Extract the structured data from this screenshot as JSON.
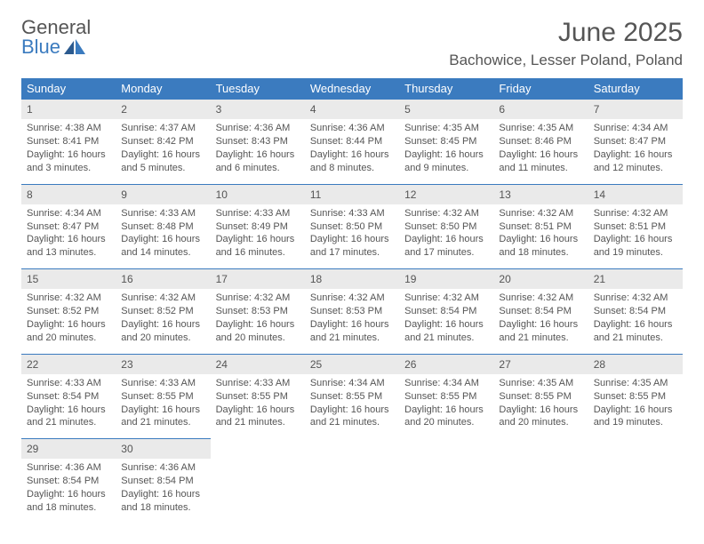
{
  "logo": {
    "text1": "General",
    "text2": "Blue",
    "icon_color": "#2b5a8f"
  },
  "title": "June 2025",
  "location": "Bachowice, Lesser Poland, Poland",
  "colors": {
    "header_bg": "#3b7bbf",
    "header_text": "#ffffff",
    "daynum_bg": "#eaeaea",
    "text": "#555555",
    "border": "#3b7bbf"
  },
  "weekdays": [
    "Sunday",
    "Monday",
    "Tuesday",
    "Wednesday",
    "Thursday",
    "Friday",
    "Saturday"
  ],
  "weeks": [
    {
      "days": [
        {
          "n": "1",
          "sr": "4:38 AM",
          "ss": "8:41 PM",
          "dl": "16 hours and 3 minutes."
        },
        {
          "n": "2",
          "sr": "4:37 AM",
          "ss": "8:42 PM",
          "dl": "16 hours and 5 minutes."
        },
        {
          "n": "3",
          "sr": "4:36 AM",
          "ss": "8:43 PM",
          "dl": "16 hours and 6 minutes."
        },
        {
          "n": "4",
          "sr": "4:36 AM",
          "ss": "8:44 PM",
          "dl": "16 hours and 8 minutes."
        },
        {
          "n": "5",
          "sr": "4:35 AM",
          "ss": "8:45 PM",
          "dl": "16 hours and 9 minutes."
        },
        {
          "n": "6",
          "sr": "4:35 AM",
          "ss": "8:46 PM",
          "dl": "16 hours and 11 minutes."
        },
        {
          "n": "7",
          "sr": "4:34 AM",
          "ss": "8:47 PM",
          "dl": "16 hours and 12 minutes."
        }
      ]
    },
    {
      "days": [
        {
          "n": "8",
          "sr": "4:34 AM",
          "ss": "8:47 PM",
          "dl": "16 hours and 13 minutes."
        },
        {
          "n": "9",
          "sr": "4:33 AM",
          "ss": "8:48 PM",
          "dl": "16 hours and 14 minutes."
        },
        {
          "n": "10",
          "sr": "4:33 AM",
          "ss": "8:49 PM",
          "dl": "16 hours and 16 minutes."
        },
        {
          "n": "11",
          "sr": "4:33 AM",
          "ss": "8:50 PM",
          "dl": "16 hours and 17 minutes."
        },
        {
          "n": "12",
          "sr": "4:32 AM",
          "ss": "8:50 PM",
          "dl": "16 hours and 17 minutes."
        },
        {
          "n": "13",
          "sr": "4:32 AM",
          "ss": "8:51 PM",
          "dl": "16 hours and 18 minutes."
        },
        {
          "n": "14",
          "sr": "4:32 AM",
          "ss": "8:51 PM",
          "dl": "16 hours and 19 minutes."
        }
      ]
    },
    {
      "days": [
        {
          "n": "15",
          "sr": "4:32 AM",
          "ss": "8:52 PM",
          "dl": "16 hours and 20 minutes."
        },
        {
          "n": "16",
          "sr": "4:32 AM",
          "ss": "8:52 PM",
          "dl": "16 hours and 20 minutes."
        },
        {
          "n": "17",
          "sr": "4:32 AM",
          "ss": "8:53 PM",
          "dl": "16 hours and 20 minutes."
        },
        {
          "n": "18",
          "sr": "4:32 AM",
          "ss": "8:53 PM",
          "dl": "16 hours and 21 minutes."
        },
        {
          "n": "19",
          "sr": "4:32 AM",
          "ss": "8:54 PM",
          "dl": "16 hours and 21 minutes."
        },
        {
          "n": "20",
          "sr": "4:32 AM",
          "ss": "8:54 PM",
          "dl": "16 hours and 21 minutes."
        },
        {
          "n": "21",
          "sr": "4:32 AM",
          "ss": "8:54 PM",
          "dl": "16 hours and 21 minutes."
        }
      ]
    },
    {
      "days": [
        {
          "n": "22",
          "sr": "4:33 AM",
          "ss": "8:54 PM",
          "dl": "16 hours and 21 minutes."
        },
        {
          "n": "23",
          "sr": "4:33 AM",
          "ss": "8:55 PM",
          "dl": "16 hours and 21 minutes."
        },
        {
          "n": "24",
          "sr": "4:33 AM",
          "ss": "8:55 PM",
          "dl": "16 hours and 21 minutes."
        },
        {
          "n": "25",
          "sr": "4:34 AM",
          "ss": "8:55 PM",
          "dl": "16 hours and 21 minutes."
        },
        {
          "n": "26",
          "sr": "4:34 AM",
          "ss": "8:55 PM",
          "dl": "16 hours and 20 minutes."
        },
        {
          "n": "27",
          "sr": "4:35 AM",
          "ss": "8:55 PM",
          "dl": "16 hours and 20 minutes."
        },
        {
          "n": "28",
          "sr": "4:35 AM",
          "ss": "8:55 PM",
          "dl": "16 hours and 19 minutes."
        }
      ]
    },
    {
      "days": [
        {
          "n": "29",
          "sr": "4:36 AM",
          "ss": "8:54 PM",
          "dl": "16 hours and 18 minutes."
        },
        {
          "n": "30",
          "sr": "4:36 AM",
          "ss": "8:54 PM",
          "dl": "16 hours and 18 minutes."
        },
        null,
        null,
        null,
        null,
        null
      ]
    }
  ],
  "labels": {
    "sunrise": "Sunrise:",
    "sunset": "Sunset:",
    "daylight": "Daylight:"
  }
}
